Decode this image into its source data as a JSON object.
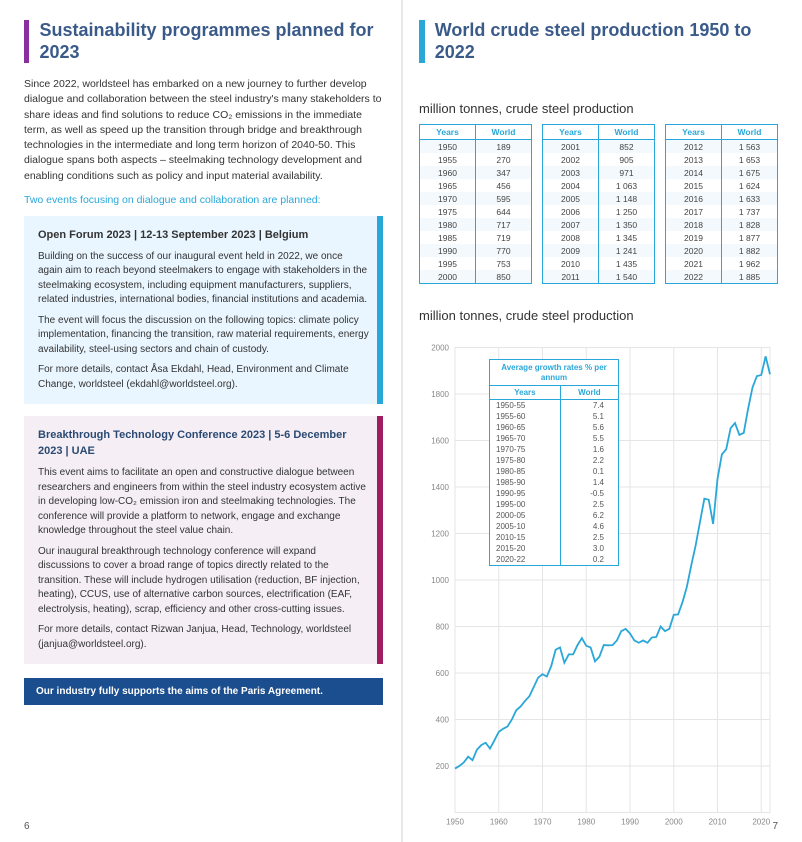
{
  "left": {
    "accent_color": "#8a2fa0",
    "title_color": "#3a5a8a",
    "title": "Sustainability programmes planned for 2023",
    "intro": "Since 2022, worldsteel has embarked on a new journey to further develop dialogue and collaboration between the steel industry's many stakeholders to share ideas and find solutions to reduce CO₂ emissions in the immediate term, as well as speed up the transition through bridge and breakthrough technologies in the intermediate and long term horizon of 2040-50. This dialogue spans both aspects – steelmaking technology development and enabling conditions such as policy and input material availability.",
    "subline": "Two events focusing on dialogue and collaboration are planned:",
    "open_forum": {
      "heading": "Open Forum 2023 | 12-13 September 2023 | Belgium",
      "p1": "Building on the success of our inaugural event held in 2022, we once again aim to reach beyond steelmakers to engage with stakeholders in the steelmaking ecosystem, including equipment manufacturers, suppliers, related industries, international bodies, financial institutions and academia.",
      "p2": "The event will focus the discussion on the following topics: climate policy implementation, financing the transition, raw material requirements, energy availability, steel-using sectors and chain of custody.",
      "p3": "For more details, contact Åsa Ekdahl, Head, Environment and Climate Change, worldsteel (ekdahl@worldsteel.org)."
    },
    "bt_conf": {
      "heading": "Breakthrough Technology Conference 2023 | 5-6 December 2023 | UAE",
      "p1": "This event aims to facilitate an open and constructive dialogue between researchers and engineers from within the steel industry ecosystem active in developing low-CO₂ emission iron and steelmaking technologies. The conference will provide a platform to network, engage and exchange knowledge throughout the steel value chain.",
      "p2": "Our inaugural breakthrough technology conference will expand discussions to cover a broad range of topics directly related to the transition. These will include hydrogen utilisation (reduction, BF injection, heating), CCUS, use of alternative carbon sources, electrification (EAF, electrolysis, heating), scrap, efficiency and other cross-cutting issues.",
      "p3": "For more details, contact Rizwan Janjua, Head, Technology, worldsteel (janjua@worldsteel.org)."
    },
    "banner": "Our industry fully supports the aims of the Paris Agreement.",
    "page_num": "6"
  },
  "right": {
    "accent_color": "#2aa7d9",
    "title_color": "#3a5a8a",
    "title": "World crude steel production 1950 to 2022",
    "section_label": "million tonnes, crude steel production",
    "table_headers": [
      "Years",
      "World"
    ],
    "table1": [
      [
        "1950",
        "189"
      ],
      [
        "1955",
        "270"
      ],
      [
        "1960",
        "347"
      ],
      [
        "1965",
        "456"
      ],
      [
        "1970",
        "595"
      ],
      [
        "1975",
        "644"
      ],
      [
        "1980",
        "717"
      ],
      [
        "1985",
        "719"
      ],
      [
        "1990",
        "770"
      ],
      [
        "1995",
        "753"
      ],
      [
        "2000",
        "850"
      ]
    ],
    "table2": [
      [
        "2001",
        "852"
      ],
      [
        "2002",
        "905"
      ],
      [
        "2003",
        "971"
      ],
      [
        "2004",
        "1 063"
      ],
      [
        "2005",
        "1 148"
      ],
      [
        "2006",
        "1 250"
      ],
      [
        "2007",
        "1 350"
      ],
      [
        "2008",
        "1 345"
      ],
      [
        "2009",
        "1 241"
      ],
      [
        "2010",
        "1 435"
      ],
      [
        "2011",
        "1 540"
      ]
    ],
    "table3": [
      [
        "2012",
        "1 563"
      ],
      [
        "2013",
        "1 653"
      ],
      [
        "2014",
        "1 675"
      ],
      [
        "2015",
        "1 624"
      ],
      [
        "2016",
        "1 633"
      ],
      [
        "2017",
        "1 737"
      ],
      [
        "2018",
        "1 828"
      ],
      [
        "2019",
        "1 877"
      ],
      [
        "2020",
        "1 882"
      ],
      [
        "2021",
        "1 962"
      ],
      [
        "2022",
        "1 885"
      ]
    ],
    "growth_box": {
      "title": "Average growth rates % per annum",
      "headers": [
        "Years",
        "World"
      ],
      "rows": [
        [
          "1950-55",
          "7.4"
        ],
        [
          "1955-60",
          "5.1"
        ],
        [
          "1960-65",
          "5.6"
        ],
        [
          "1965-70",
          "5.5"
        ],
        [
          "1970-75",
          "1.6"
        ],
        [
          "1975-80",
          "2.2"
        ],
        [
          "1980-85",
          "0.1"
        ],
        [
          "1985-90",
          "1.4"
        ],
        [
          "1990-95",
          "-0.5"
        ],
        [
          "1995-00",
          "2.5"
        ],
        [
          "2000-05",
          "6.2"
        ],
        [
          "2005-10",
          "4.6"
        ],
        [
          "2010-15",
          "2.5"
        ],
        [
          "2015-20",
          "3.0"
        ],
        [
          "2020-22",
          "0.2"
        ]
      ]
    },
    "chart": {
      "type": "line",
      "xlim": [
        1950,
        2022
      ],
      "ylim": [
        0,
        2000
      ],
      "ytick_step": 200,
      "xtick_step": 10,
      "line_color": "#2aa7d9",
      "grid_color": "#e5e5e5",
      "axis_text_color": "#888888",
      "background": "#ffffff",
      "line_width": 1.8,
      "series": [
        [
          1950,
          189
        ],
        [
          1951,
          200
        ],
        [
          1952,
          215
        ],
        [
          1953,
          240
        ],
        [
          1954,
          225
        ],
        [
          1955,
          270
        ],
        [
          1956,
          290
        ],
        [
          1957,
          300
        ],
        [
          1958,
          275
        ],
        [
          1959,
          310
        ],
        [
          1960,
          347
        ],
        [
          1961,
          360
        ],
        [
          1962,
          370
        ],
        [
          1963,
          400
        ],
        [
          1964,
          440
        ],
        [
          1965,
          456
        ],
        [
          1966,
          480
        ],
        [
          1967,
          500
        ],
        [
          1968,
          540
        ],
        [
          1969,
          580
        ],
        [
          1970,
          595
        ],
        [
          1971,
          585
        ],
        [
          1972,
          630
        ],
        [
          1973,
          700
        ],
        [
          1974,
          710
        ],
        [
          1975,
          644
        ],
        [
          1976,
          680
        ],
        [
          1977,
          680
        ],
        [
          1978,
          720
        ],
        [
          1979,
          750
        ],
        [
          1980,
          717
        ],
        [
          1981,
          710
        ],
        [
          1982,
          650
        ],
        [
          1983,
          670
        ],
        [
          1984,
          720
        ],
        [
          1985,
          719
        ],
        [
          1986,
          720
        ],
        [
          1987,
          740
        ],
        [
          1988,
          780
        ],
        [
          1989,
          790
        ],
        [
          1990,
          770
        ],
        [
          1991,
          740
        ],
        [
          1992,
          730
        ],
        [
          1993,
          740
        ],
        [
          1994,
          730
        ],
        [
          1995,
          753
        ],
        [
          1996,
          755
        ],
        [
          1997,
          800
        ],
        [
          1998,
          780
        ],
        [
          1999,
          790
        ],
        [
          2000,
          850
        ],
        [
          2001,
          852
        ],
        [
          2002,
          905
        ],
        [
          2003,
          971
        ],
        [
          2004,
          1063
        ],
        [
          2005,
          1148
        ],
        [
          2006,
          1250
        ],
        [
          2007,
          1350
        ],
        [
          2008,
          1345
        ],
        [
          2009,
          1241
        ],
        [
          2010,
          1435
        ],
        [
          2011,
          1540
        ],
        [
          2012,
          1563
        ],
        [
          2013,
          1653
        ],
        [
          2014,
          1675
        ],
        [
          2015,
          1624
        ],
        [
          2016,
          1633
        ],
        [
          2017,
          1737
        ],
        [
          2018,
          1828
        ],
        [
          2019,
          1877
        ],
        [
          2020,
          1882
        ],
        [
          2021,
          1962
        ],
        [
          2022,
          1885
        ]
      ]
    },
    "page_num": "7"
  }
}
